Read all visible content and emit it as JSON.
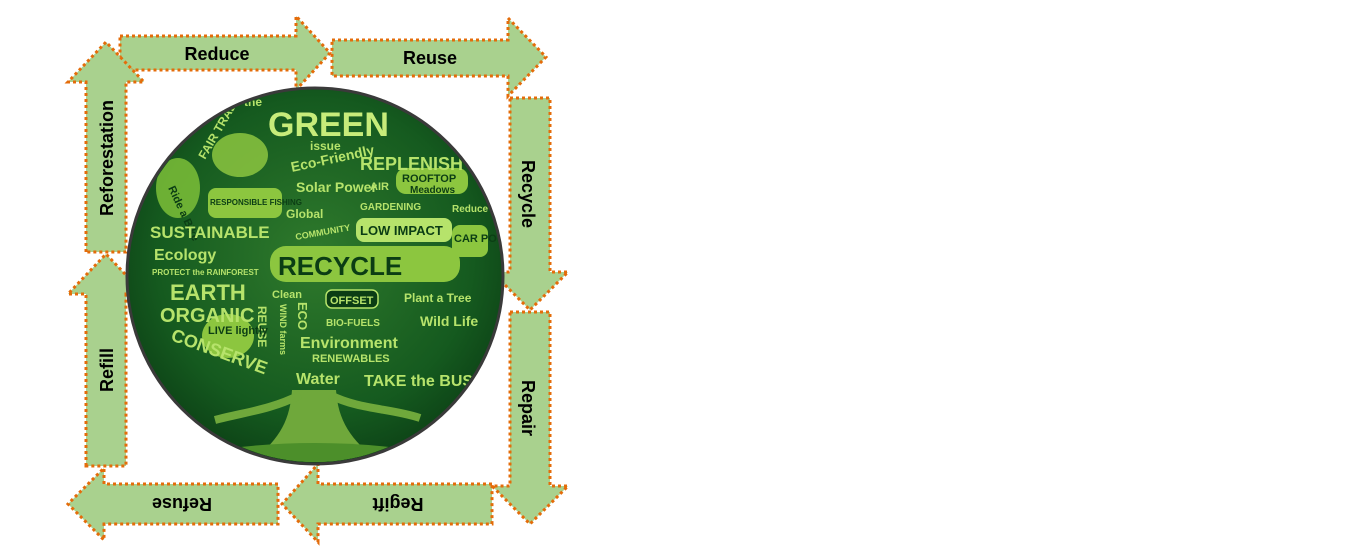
{
  "arrows": {
    "reduce": "Reduce",
    "reuse": "Reuse",
    "recycle": "Recycle",
    "repair": "Repair",
    "regift": "Regift",
    "refuse": "Refuse",
    "refill": "Refill",
    "reforestation": "Reforestation"
  },
  "tree_words": {
    "the": "the",
    "green": "GREEN",
    "issue": "issue",
    "fair_trade": "FAIR TRADE",
    "replenish": "REPLENISH",
    "eco_friendly": "Eco-Friendly",
    "rooftop": "ROOFTOP",
    "meadows": "Meadows",
    "solar_power": "Solar Power",
    "air": "AIR",
    "ride_a_bike": "Ride a Bike",
    "responsible_fishing": "RESPONSIBLE FISHING",
    "global": "Global",
    "gardening": "GARDENING",
    "reduce": "Reduce",
    "sustainable": "SUSTAINABLE",
    "community": "COMMUNITY",
    "low_impact": "LOW IMPACT",
    "car_pool": "CAR POOL",
    "ecology": "Ecology",
    "recycle": "RECYCLE",
    "protect_rainforest": "PROTECT the RAINFOREST",
    "earth": "EARTH",
    "clean": "Clean",
    "offset": "OFFSET",
    "plant_a_tree": "Plant a Tree",
    "organic": "ORGANIC",
    "reuse": "REUSE",
    "eco": "ECO",
    "bio_fuels": "BIO-FUELS",
    "wild_life": "Wild Life",
    "live_lightly": "LIVE lightly",
    "wind_farms": "WIND farms",
    "environment": "Environment",
    "conserve": "CONSERVE",
    "renewables": "RENEWABLES",
    "water": "Water",
    "take_the_bus": "TAKE the BUS"
  },
  "colors": {
    "arrow_fill": "#a9d18e",
    "arrow_border": "#e46c0a",
    "circle_dark": "#0f4d1a",
    "circle_rim": "#3a3a3a",
    "word_light": "#b6e36b"
  }
}
